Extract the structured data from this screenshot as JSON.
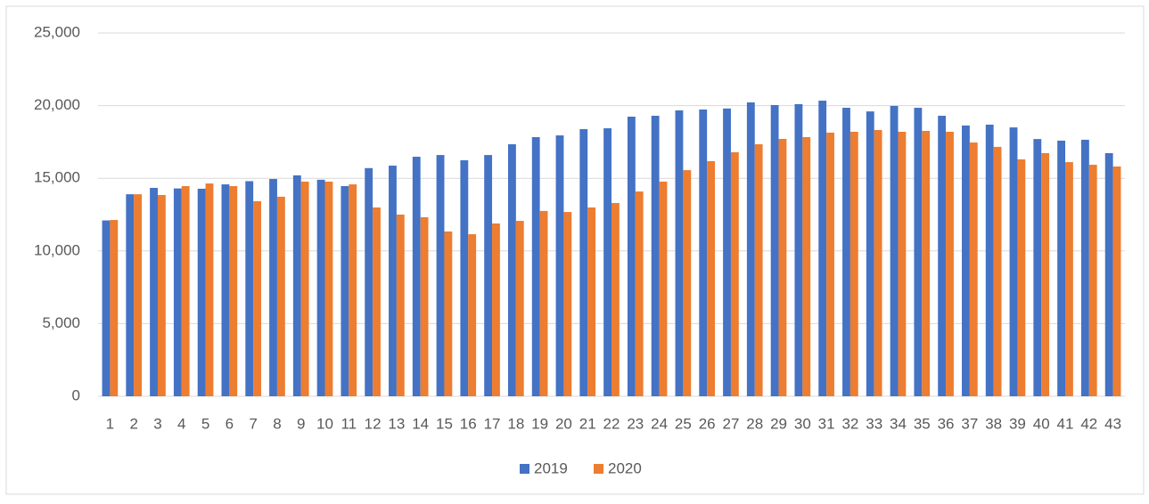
{
  "chart_data": {
    "type": "bar",
    "categories": [
      "1",
      "2",
      "3",
      "4",
      "5",
      "6",
      "7",
      "8",
      "9",
      "10",
      "11",
      "12",
      "13",
      "14",
      "15",
      "16",
      "17",
      "18",
      "19",
      "20",
      "21",
      "22",
      "23",
      "24",
      "25",
      "26",
      "27",
      "28",
      "29",
      "30",
      "31",
      "32",
      "33",
      "34",
      "35",
      "36",
      "37",
      "38",
      "39",
      "40",
      "41",
      "42",
      "43"
    ],
    "series": [
      {
        "name": "2019",
        "color": "#4472c4",
        "values": [
          12100,
          13900,
          14340,
          14300,
          14280,
          14580,
          14800,
          14950,
          15200,
          14900,
          14460,
          15700,
          15870,
          16480,
          16600,
          16240,
          16600,
          17340,
          17830,
          17950,
          18380,
          18440,
          19240,
          19300,
          19670,
          19730,
          19800,
          20220,
          20040,
          20100,
          20340,
          19850,
          19600,
          19980,
          19850,
          19300,
          18630,
          18690,
          18500,
          17700,
          17590,
          17650,
          16730
        ]
      },
      {
        "name": "2020",
        "color": "#ed7d31",
        "values": [
          12130,
          13900,
          13850,
          14460,
          14640,
          14460,
          13420,
          13730,
          14770,
          14770,
          14580,
          12990,
          12500,
          12320,
          11340,
          11150,
          11890,
          12070,
          12750,
          12680,
          12990,
          13300,
          14090,
          14770,
          15560,
          16180,
          16790,
          17340,
          17710,
          17830,
          18140,
          18200,
          18320,
          18200,
          18260,
          18200,
          17460,
          17160,
          16300,
          16730,
          16110,
          15930,
          15810
        ]
      }
    ],
    "ylim": [
      0,
      25000
    ],
    "yticks": [
      {
        "value": 0,
        "label": "0"
      },
      {
        "value": 5000,
        "label": "5,000"
      },
      {
        "value": 10000,
        "label": "10,000"
      },
      {
        "value": 15000,
        "label": "15,000"
      },
      {
        "value": 20000,
        "label": "20,000"
      },
      {
        "value": 25000,
        "label": "25,000"
      }
    ],
    "grid": true,
    "legend": "bottom"
  }
}
